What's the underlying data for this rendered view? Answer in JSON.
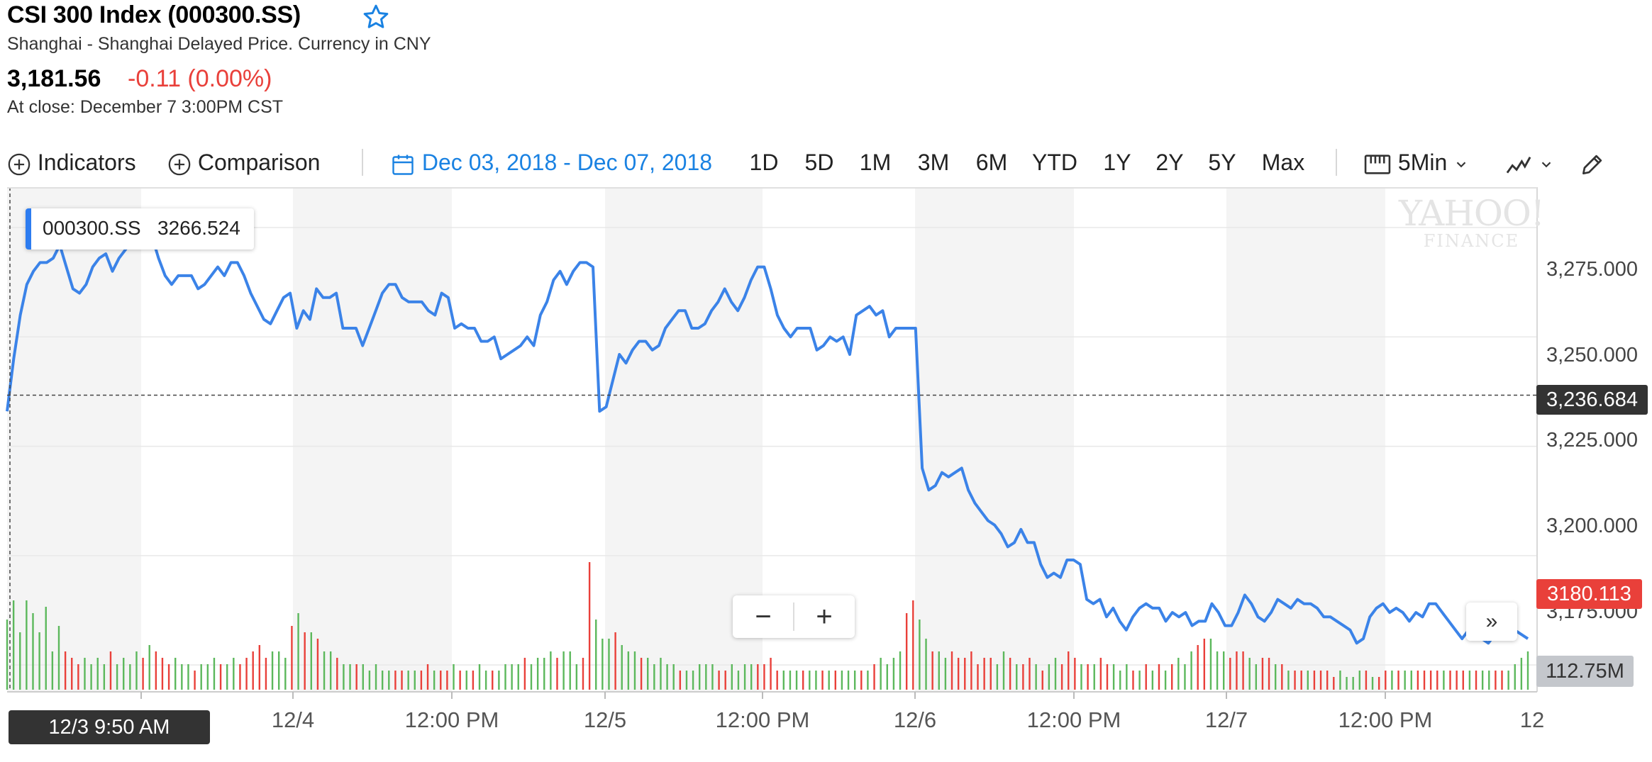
{
  "quote": {
    "title": "CSI 300 Index (000300.SS)",
    "subtitle": "Shanghai - Shanghai Delayed Price. Currency in CNY",
    "price": "3,181.56",
    "change": "-0.11 (0.00%)",
    "close_time": "At close: December 7 3:00PM CST",
    "star_icon": "star-outline-icon"
  },
  "toolbar": {
    "indicators": "Indicators",
    "comparison": "Comparison",
    "date_range": "Dec 03, 2018 - Dec 07, 2018",
    "ranges": [
      "1D",
      "5D",
      "1M",
      "3M",
      "6M",
      "YTD",
      "1Y",
      "2Y",
      "5Y",
      "Max"
    ],
    "interval": "5Min",
    "icons": [
      "plus-circle-icon",
      "calendar-icon",
      "candle-frame-icon",
      "chevron-down-icon",
      "line-chart-icon",
      "pencil-icon"
    ]
  },
  "tooltip": {
    "symbol": "000300.SS",
    "value": "3266.524"
  },
  "watermark": {
    "line1": "YAHOO!",
    "line2": "FINANCE"
  },
  "labels": {
    "cursor_price": "3,236.684",
    "last_price": "3180.113",
    "volume": "112.75M",
    "cursor_time": "12/3 9:50 AM",
    "zoom_out": "−",
    "zoom_in": "+",
    "expand": "»"
  },
  "colors": {
    "line": "#3b83e8",
    "up": "#5cb85c",
    "down": "#e9403a",
    "accent": "#1a82e2",
    "shade": "#f4f4f4"
  },
  "chart_data": {
    "type": "line",
    "series": [
      {
        "name": "000300.SS",
        "values": [
          3233,
          3245,
          3255,
          3262,
          3265,
          3267,
          3267,
          3268,
          3271,
          3266,
          3261,
          3260,
          3262,
          3266,
          3268,
          3269,
          3265,
          3268,
          3270,
          3272,
          3273,
          3271,
          3273,
          3268,
          3264,
          3262,
          3264,
          3264,
          3264,
          3261,
          3262,
          3264,
          3266,
          3264,
          3267,
          3267,
          3264,
          3260,
          3257,
          3254,
          3253,
          3256,
          3259,
          3260,
          3252,
          3256,
          3254,
          3261,
          3259,
          3259,
          3260,
          3252,
          3252,
          3252,
          3248,
          3252,
          3256,
          3260,
          3262,
          3262,
          3259,
          3258,
          3258,
          3258,
          3256,
          3255,
          3260,
          3259,
          3252,
          3253,
          3252,
          3252,
          3249,
          3249,
          3250,
          3245,
          3246,
          3247,
          3248,
          3250,
          3248,
          3255,
          3258,
          3263,
          3265,
          3262,
          3265,
          3267,
          3267,
          3266,
          3233,
          3234,
          3240,
          3246,
          3244,
          3247,
          3249,
          3249,
          3247,
          3248,
          3252,
          3254,
          3256,
          3256,
          3252,
          3252,
          3253,
          3256,
          3258,
          3261,
          3258,
          3256,
          3259,
          3263,
          3266,
          3266,
          3261,
          3255,
          3252,
          3250,
          3252,
          3252,
          3252,
          3247,
          3248,
          3250,
          3249,
          3250,
          3246,
          3255,
          3256,
          3257,
          3255,
          3256,
          3250,
          3252,
          3252,
          3252,
          3252,
          3220,
          3215,
          3216,
          3219,
          3218,
          3219,
          3220,
          3215,
          3212,
          3210,
          3208,
          3207,
          3205,
          3202,
          3203,
          3206,
          3203,
          3203,
          3198,
          3195,
          3196,
          3195,
          3199,
          3199,
          3198,
          3190,
          3189,
          3190,
          3186,
          3188,
          3185,
          3183,
          3186,
          3188,
          3189,
          3188,
          3188,
          3185,
          3187,
          3186,
          3187,
          3184,
          3185,
          3185,
          3189,
          3187,
          3184,
          3184,
          3187,
          3191,
          3189,
          3186,
          3185,
          3187,
          3190,
          3189,
          3188,
          3190,
          3189,
          3189,
          3188,
          3186,
          3186,
          3185,
          3184,
          3183,
          3180,
          3181,
          3186,
          3188,
          3189,
          3187,
          3188,
          3187,
          3185,
          3187,
          3186,
          3189,
          3189,
          3187,
          3185,
          3183,
          3181,
          3183,
          3182,
          3181,
          3180,
          3182,
          3181,
          3182,
          3183,
          3182,
          3181
        ]
      }
    ],
    "x_labels": [
      "12/4",
      "12:00 PM",
      "12/5",
      "12:00 PM",
      "12/6",
      "12:00 PM",
      "12/7",
      "12:00 PM",
      "12"
    ],
    "y_ticks": [
      "3,275.000",
      "3,250.000",
      "3,225.000",
      "3,200.000",
      "3,175.000"
    ],
    "ylim": [
      3170,
      3281
    ],
    "volume": {
      "values": [
        0.55,
        0.7,
        0.45,
        0.7,
        0.6,
        0.45,
        0.65,
        0.3,
        0.5,
        0.3,
        0.25,
        0.2,
        0.25,
        0.2,
        0.25,
        0.2,
        0.3,
        0.2,
        0.25,
        0.2,
        0.3,
        0.25,
        0.35,
        0.3,
        0.25,
        0.2,
        0.25,
        0.2,
        0.2,
        0.15,
        0.2,
        0.2,
        0.25,
        0.2,
        0.2,
        0.25,
        0.2,
        0.25,
        0.3,
        0.35,
        0.25,
        0.3,
        0.3,
        0.25,
        0.5,
        0.6,
        0.45,
        0.45,
        0.4,
        0.3,
        0.3,
        0.25,
        0.2,
        0.2,
        0.2,
        0.2,
        0.15,
        0.2,
        0.15,
        0.15,
        0.15,
        0.15,
        0.15,
        0.15,
        0.15,
        0.2,
        0.15,
        0.15,
        0.15,
        0.2,
        0.15,
        0.15,
        0.15,
        0.2,
        0.15,
        0.15,
        0.15,
        0.2,
        0.2,
        0.2,
        0.25,
        0.2,
        0.25,
        0.25,
        0.3,
        0.25,
        0.3,
        0.3,
        0.2,
        0.25,
        1.0,
        0.55,
        0.4,
        0.4,
        0.45,
        0.35,
        0.3,
        0.3,
        0.25,
        0.25,
        0.2,
        0.25,
        0.2,
        0.2,
        0.15,
        0.15,
        0.15,
        0.2,
        0.2,
        0.2,
        0.15,
        0.15,
        0.2,
        0.15,
        0.2,
        0.2,
        0.2,
        0.2,
        0.25,
        0.15,
        0.15,
        0.15,
        0.15,
        0.15,
        0.15,
        0.15,
        0.15,
        0.15,
        0.15,
        0.15,
        0.15,
        0.15,
        0.15,
        0.15,
        0.2,
        0.25,
        0.2,
        0.25,
        0.3,
        0.6,
        0.7,
        0.55,
        0.4,
        0.3,
        0.3,
        0.25,
        0.3,
        0.25,
        0.25,
        0.3,
        0.2,
        0.25,
        0.25,
        0.2,
        0.3,
        0.25,
        0.2,
        0.2,
        0.25,
        0.2,
        0.15,
        0.2,
        0.25,
        0.2,
        0.3,
        0.25,
        0.2,
        0.2,
        0.2,
        0.25,
        0.2,
        0.2,
        0.15,
        0.2,
        0.15,
        0.15,
        0.2,
        0.15,
        0.2,
        0.15,
        0.2,
        0.25,
        0.2,
        0.3,
        0.35,
        0.4,
        0.4,
        0.3,
        0.3,
        0.25,
        0.3,
        0.3,
        0.25,
        0.2,
        0.25,
        0.25,
        0.2,
        0.2,
        0.15,
        0.15,
        0.15,
        0.15,
        0.15,
        0.15,
        0.15,
        0.1,
        0.15,
        0.1,
        0.1,
        0.15,
        0.15,
        0.1,
        0.1,
        0.15,
        0.15,
        0.15,
        0.15,
        0.15,
        0.15,
        0.15,
        0.15,
        0.15,
        0.15,
        0.15,
        0.15,
        0.15,
        0.15,
        0.15,
        0.15,
        0.15,
        0.15,
        0.15,
        0.15,
        0.2,
        0.25,
        0.3
      ],
      "last_label": "112.75M"
    },
    "cursor_value": 3236.684,
    "last_value": 3180.113
  }
}
